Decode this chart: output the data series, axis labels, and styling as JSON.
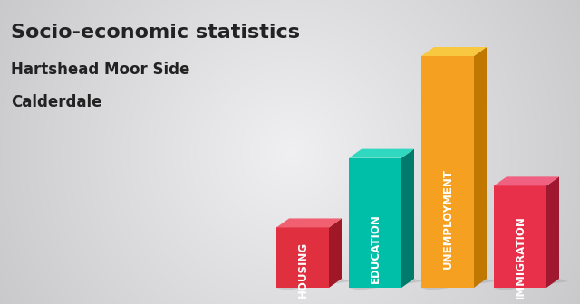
{
  "title_line1": "Socio-economic statistics",
  "title_line2": "Hartshead Moor Side",
  "title_line3": "Calderdale",
  "categories": [
    "HOUSING",
    "EDUCATION",
    "UNEMPLOYMENT",
    "IMMIGRATION"
  ],
  "values": [
    0.26,
    0.56,
    1.0,
    0.44
  ],
  "bar_colors_front": [
    "#E03040",
    "#00BFA8",
    "#F5A020",
    "#E8304A"
  ],
  "bar_colors_side": [
    "#A01828",
    "#007A6A",
    "#C07800",
    "#A01830"
  ],
  "bar_colors_top": [
    "#F06070",
    "#30D8C0",
    "#F8C840",
    "#F06080"
  ],
  "background_color_center": "#E8E8E8",
  "background_color_edge": "#B0B0B8",
  "text_color": "#222222",
  "title_fontsize": 16,
  "subtitle_fontsize": 12,
  "label_fontsize": 8.5
}
